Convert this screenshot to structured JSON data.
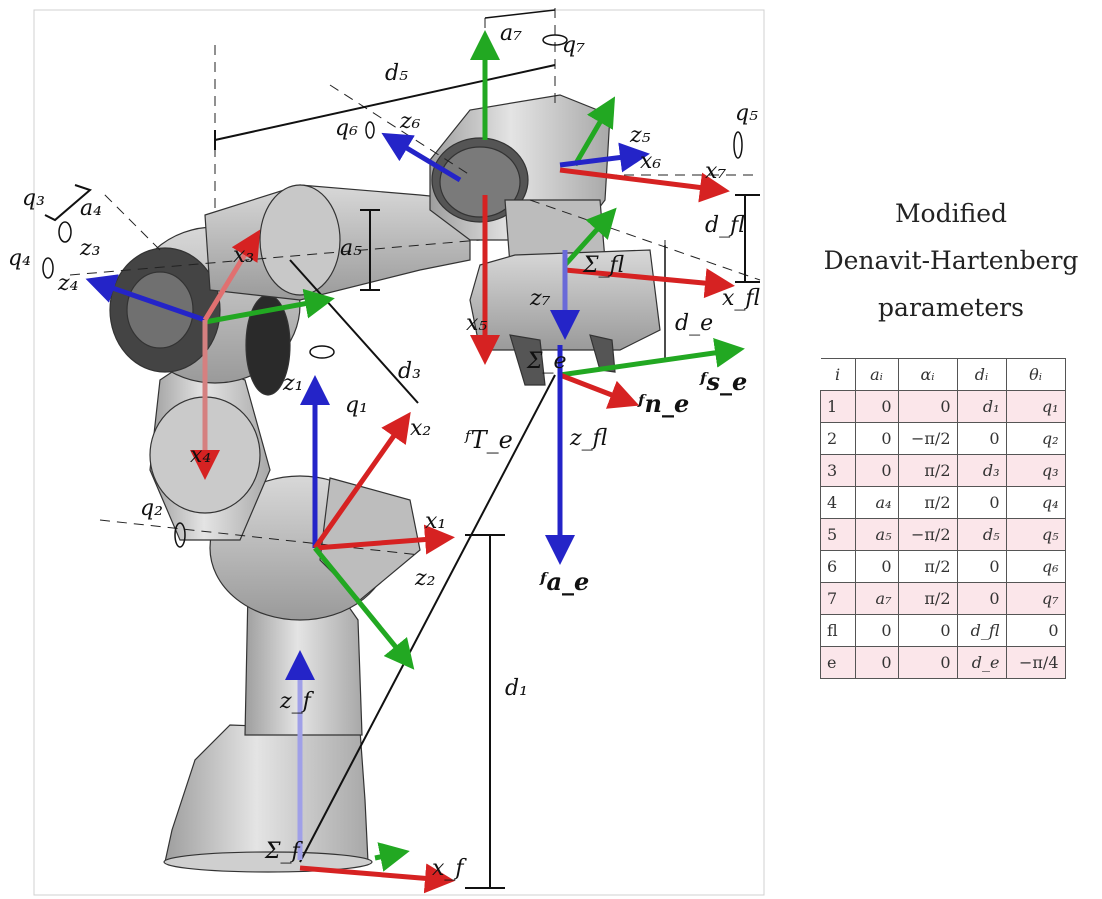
{
  "diagram": {
    "axis_labels": {
      "a7": "a₇",
      "q7": "q₇",
      "d5": "d₅",
      "q5": "q₅",
      "q6": "q₆",
      "z6": "z₆",
      "z5": "z₅",
      "x6": "x₆",
      "x7": "x₇",
      "q3": "q₃",
      "a4": "a₄",
      "z3": "z₃",
      "q4": "q₄",
      "z4": "z₄",
      "x3": "x₃",
      "a5": "a₅",
      "dfl": "d_fl",
      "sigma_fl": "Σ_fl",
      "xfl": "x_fl",
      "z7": "z₇",
      "x5": "x₅",
      "de": "d_e",
      "sigma_e": "Σ_e",
      "fse": "ᶠs_e",
      "fne": "ᶠn_e",
      "d3": "d₃",
      "z1": "z₁",
      "q1": "q₁",
      "x2": "x₂",
      "zfl": "z_fl",
      "fTe": "ᶠT_e",
      "x4": "x₄",
      "q2": "q₂",
      "x1": "x₁",
      "z2": "z₂",
      "fae": "ᶠa_e",
      "d1": "d₁",
      "zf": "z_f",
      "sigma_f": "Σ_f",
      "xf": "x_f"
    },
    "colors": {
      "x_axis": "#d62222",
      "y_axis": "#22a822",
      "z_axis": "#2424c8"
    }
  },
  "caption": {
    "line1": "Modified",
    "line2": "Denavit-Hartenberg",
    "line3": "parameters"
  },
  "table": {
    "headers": [
      "i",
      "aᵢ",
      "αᵢ",
      "dᵢ",
      "θᵢ"
    ],
    "rows": [
      [
        "1",
        "0",
        "0",
        "d₁",
        "q₁"
      ],
      [
        "2",
        "0",
        "−π/2",
        "0",
        "q₂"
      ],
      [
        "3",
        "0",
        "π/2",
        "d₃",
        "q₃"
      ],
      [
        "4",
        "a₄",
        "π/2",
        "0",
        "q₄"
      ],
      [
        "5",
        "a₅",
        "−π/2",
        "d₅",
        "q₅"
      ],
      [
        "6",
        "0",
        "π/2",
        "0",
        "q₆"
      ],
      [
        "7",
        "a₇",
        "π/2",
        "0",
        "q₇"
      ],
      [
        "fl",
        "0",
        "0",
        "d_fl",
        "0"
      ],
      [
        "e",
        "0",
        "0",
        "d_e",
        "−π/4"
      ]
    ]
  }
}
